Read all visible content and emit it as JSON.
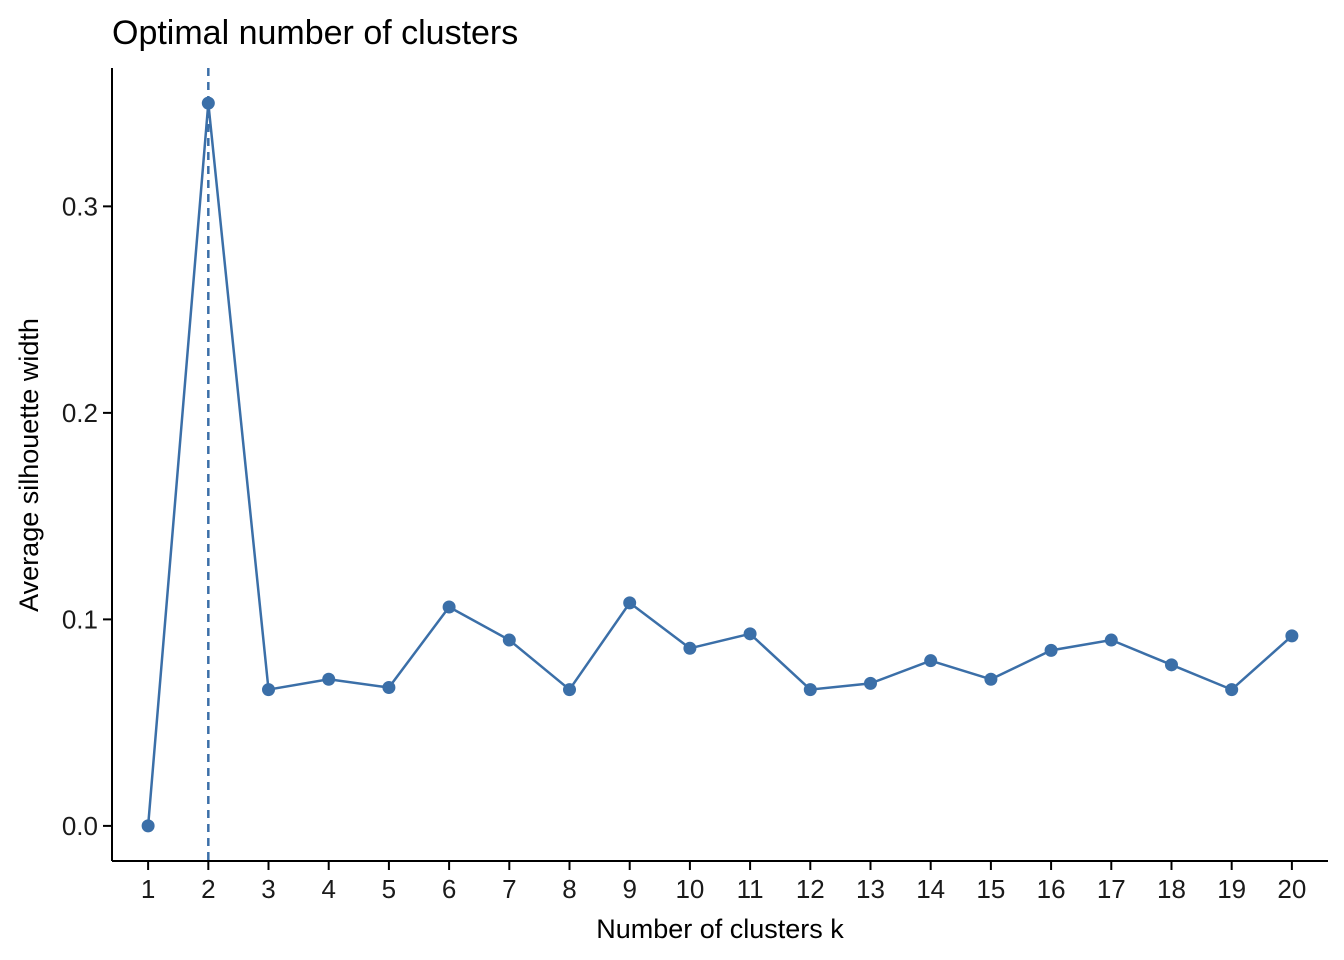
{
  "chart_data": {
    "type": "line",
    "title": "Optimal number of clusters",
    "xlabel": "Number of clusters k",
    "ylabel": "Average silhouette width",
    "x": [
      1,
      2,
      3,
      4,
      5,
      6,
      7,
      8,
      9,
      10,
      11,
      12,
      13,
      14,
      15,
      16,
      17,
      18,
      19,
      20
    ],
    "series": [
      {
        "values": [
          0.0,
          0.35,
          0.066,
          0.071,
          0.067,
          0.106,
          0.09,
          0.066,
          0.108,
          0.086,
          0.093,
          0.066,
          0.069,
          0.08,
          0.071,
          0.085,
          0.09,
          0.078,
          0.066,
          0.092
        ]
      }
    ],
    "yticks": [
      0.0,
      0.1,
      0.2,
      0.3
    ],
    "ytick_labels": [
      "0.0",
      "0.1",
      "0.2",
      "0.3"
    ],
    "xtick_labels": [
      "1",
      "2",
      "3",
      "4",
      "5",
      "6",
      "7",
      "8",
      "9",
      "10",
      "11",
      "12",
      "13",
      "14",
      "15",
      "16",
      "17",
      "18",
      "19",
      "20"
    ],
    "ylim": [
      -0.017,
      0.367
    ],
    "xlim": [
      0.4,
      20.6
    ],
    "optimal_k": 2,
    "grid": false,
    "colors": {
      "line": "#3B6FA8",
      "vline": "#3B6FA8",
      "axis": "#000000"
    }
  }
}
